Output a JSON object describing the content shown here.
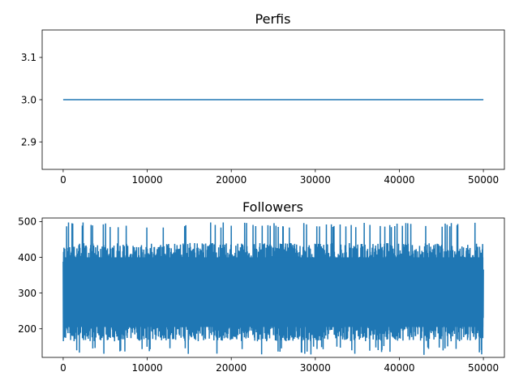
{
  "chart_data": [
    {
      "type": "line",
      "title": "Perfis",
      "xlabel": "",
      "ylabel": "",
      "xlim": [
        -2500,
        52500
      ],
      "ylim": [
        2.835,
        3.165
      ],
      "xticks": [
        0,
        10000,
        20000,
        30000,
        40000,
        50000
      ],
      "xtick_labels": [
        "0",
        "10000",
        "20000",
        "30000",
        "40000",
        "50000"
      ],
      "yticks": [
        2.9,
        3.0,
        3.1
      ],
      "ytick_labels": [
        "2.9",
        "3.0",
        "3.1"
      ],
      "grid": false,
      "color": "#1f77b4",
      "series": [
        {
          "x": [
            0,
            50000
          ],
          "values": [
            3.0,
            3.0
          ]
        }
      ]
    },
    {
      "type": "line",
      "title": "Followers",
      "xlabel": "",
      "ylabel": "",
      "xlim": [
        -2500,
        52500
      ],
      "ylim": [
        120,
        510
      ],
      "xticks": [
        0,
        10000,
        20000,
        30000,
        40000,
        50000
      ],
      "xtick_labels": [
        "0",
        "10000",
        "20000",
        "30000",
        "40000",
        "50000"
      ],
      "yticks": [
        200,
        300,
        400,
        500
      ],
      "ytick_labels": [
        "200",
        "300",
        "400",
        "500"
      ],
      "grid": false,
      "color": "#1f77b4",
      "series": [
        {
          "x_start": 0,
          "x_end": 50000,
          "point_count": 50000,
          "typical_band": [
            165,
            440
          ],
          "min_observed": 127,
          "max_observed": 498
        }
      ]
    }
  ]
}
